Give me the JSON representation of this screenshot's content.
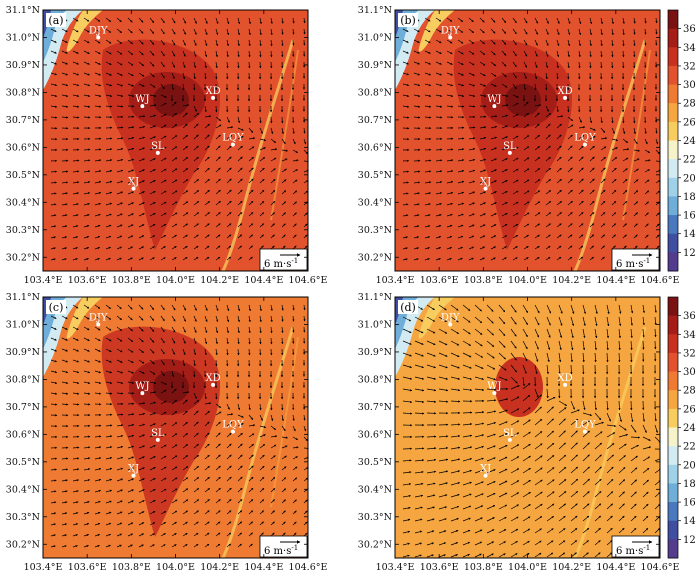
{
  "x_ticks": [
    "103.4°E",
    "103.6°E",
    "103.8°E",
    "104.0°E",
    "104.2°E",
    "104.4°E",
    "104.6°E"
  ],
  "y_ticks": [
    "31.1°N",
    "31.0°N",
    "30.9°N",
    "30.8°N",
    "30.7°N",
    "30.6°N",
    "30.5°N",
    "30.4°N",
    "30.3°N",
    "30.2°N"
  ],
  "colorbar": {
    "labels": [
      "36",
      "34",
      "32",
      "30",
      "28",
      "26",
      "24",
      "22",
      "20",
      "18",
      "16",
      "14",
      "12"
    ],
    "colors": [
      "#7a1212",
      "#a51d17",
      "#c8311f",
      "#e2522c",
      "#ef7a32",
      "#f6a641",
      "#f8cd5f",
      "#f6f2c9",
      "#d2ebf2",
      "#9fd2e9",
      "#6eaed9",
      "#4a78bf",
      "#3f4ea1",
      "#533c8e"
    ]
  },
  "stations": [
    {
      "name": "DJY",
      "lon": 103.65,
      "lat": 31.0
    },
    {
      "name": "WJ",
      "lon": 103.85,
      "lat": 30.75
    },
    {
      "name": "XD",
      "lon": 104.17,
      "lat": 30.78
    },
    {
      "name": "SL",
      "lon": 103.92,
      "lat": 30.58
    },
    {
      "name": "LQY",
      "lon": 104.26,
      "lat": 30.61
    },
    {
      "name": "XJ",
      "lon": 103.81,
      "lat": 30.45
    }
  ],
  "reference_vector": "6 m·s",
  "reference_vector_exp": "-1",
  "panels": [
    {
      "label": "(a)",
      "background": "#e2522c"
    },
    {
      "label": "(b)",
      "background": "#e2522c"
    },
    {
      "label": "(c)",
      "background": "#ef7a32"
    },
    {
      "label": "(d)",
      "background": "#f6a641"
    }
  ]
}
